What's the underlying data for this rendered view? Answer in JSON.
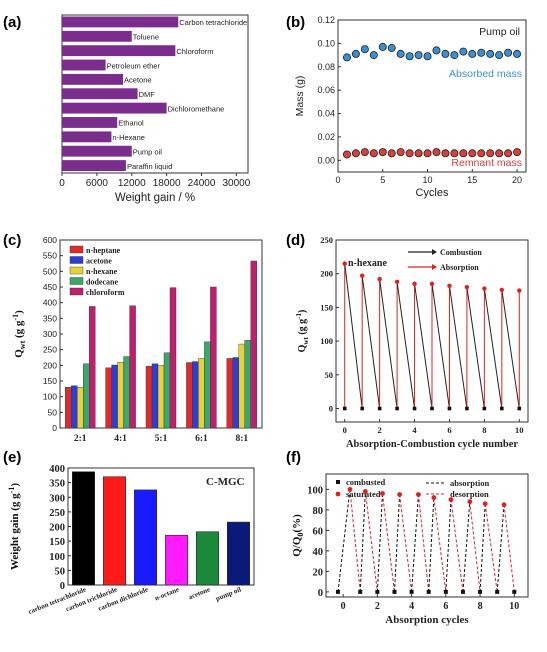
{
  "chart_data": [
    {
      "panel": "(a)",
      "type": "bar",
      "orientation": "horizontal",
      "categories": [
        "Carbon tetrachloride",
        "Toluene",
        "Chloroform",
        "Petroleum ether",
        "Acetone",
        "DMF",
        "Dichloromethane",
        "Ethanol",
        "n-Hexane",
        "Pump oil",
        "Paraffin liquid"
      ],
      "values": [
        20000,
        12000,
        19500,
        7500,
        10500,
        13000,
        18000,
        9500,
        8500,
        12000,
        11000
      ],
      "xlabel": "Weight gain / %",
      "xlim": [
        0,
        32000
      ],
      "xticks": [
        "0",
        "6000",
        "12000",
        "18000",
        "24000",
        "30000"
      ],
      "color": "#7b2d8e"
    },
    {
      "panel": "(b)",
      "type": "scatter",
      "title": "Pump oil",
      "xlabel": "Cycles",
      "ylabel": "Mass (g)",
      "xlim": [
        0,
        21
      ],
      "ylim": [
        -0.01,
        0.12
      ],
      "xticks": [
        "0",
        "5",
        "10",
        "15",
        "20"
      ],
      "yticks": [
        "0.00",
        "0.02",
        "0.04",
        "0.06",
        "0.08",
        "0.10",
        "0.12"
      ],
      "series": [
        {
          "name": "Absorbed mass",
          "color": "#3a8fd0",
          "x": [
            1,
            2,
            3,
            4,
            5,
            6,
            7,
            8,
            9,
            10,
            11,
            12,
            13,
            14,
            15,
            16,
            17,
            18,
            19,
            20
          ],
          "y": [
            0.088,
            0.091,
            0.095,
            0.09,
            0.097,
            0.096,
            0.091,
            0.089,
            0.09,
            0.089,
            0.094,
            0.091,
            0.09,
            0.093,
            0.091,
            0.092,
            0.091,
            0.09,
            0.092,
            0.091
          ]
        },
        {
          "name": "Remnant mass",
          "color": "#d9403a",
          "x": [
            1,
            2,
            3,
            4,
            5,
            6,
            7,
            8,
            9,
            10,
            11,
            12,
            13,
            14,
            15,
            16,
            17,
            18,
            19,
            20
          ],
          "y": [
            0.005,
            0.006,
            0.007,
            0.006,
            0.007,
            0.006,
            0.007,
            0.006,
            0.006,
            0.006,
            0.007,
            0.006,
            0.006,
            0.006,
            0.006,
            0.006,
            0.006,
            0.006,
            0.006,
            0.007
          ]
        }
      ]
    },
    {
      "panel": "(c)",
      "type": "bar",
      "categories": [
        "2:1",
        "4:1",
        "5:1",
        "6:1",
        "8:1"
      ],
      "ylabel": "Q",
      "ylabel_sub": "wt",
      "ylabel_unit": " (g g",
      "ylabel_sup": "-1",
      "ylabel_end": ")",
      "ylim": [
        0,
        600
      ],
      "yticks": [
        "0",
        "50",
        "100",
        "150",
        "200",
        "250",
        "300",
        "350",
        "400",
        "450",
        "500",
        "550",
        "600"
      ],
      "series": [
        {
          "name": "n-heptane",
          "color": "#e02b2b",
          "values": [
            130,
            192,
            197,
            209,
            222
          ]
        },
        {
          "name": "acetone",
          "color": "#2b3fd6",
          "values": [
            135,
            201,
            205,
            212,
            225
          ]
        },
        {
          "name": "n-hexane",
          "color": "#e8d23a",
          "values": [
            130,
            210,
            200,
            222,
            268
          ]
        },
        {
          "name": "dodecane",
          "color": "#3aa86a",
          "values": [
            205,
            228,
            240,
            275,
            280
          ]
        },
        {
          "name": "chloroform",
          "color": "#c01f6e",
          "values": [
            388,
            390,
            448,
            450,
            533
          ]
        }
      ]
    },
    {
      "panel": "(d)",
      "type": "line",
      "title": "n-hexane",
      "xlabel": "Absorption-Combustion cycle number",
      "ylabel": "Q",
      "ylabel_sub": "wt",
      "ylabel_unit": " (g g",
      "ylabel_sup": "-1",
      "ylabel_end": ")",
      "xlim": [
        -0.5,
        10.5
      ],
      "ylim": [
        -20,
        250
      ],
      "xticks": [
        "0",
        "2",
        "4",
        "6",
        "8",
        "10"
      ],
      "yticks": [
        "0",
        "50",
        "100",
        "150",
        "200",
        "250"
      ],
      "series": [
        {
          "name": "Combustion",
          "color": "#222222",
          "x": [
            0,
            0,
            1,
            1,
            2,
            2,
            3,
            3,
            4,
            4,
            5,
            5,
            6,
            6,
            7,
            7,
            8,
            8,
            9,
            9,
            10,
            10
          ],
          "y": [
            0,
            215,
            0,
            197,
            0,
            192,
            0,
            188,
            0,
            185,
            0,
            185,
            0,
            182,
            0,
            180,
            0,
            178,
            0,
            176,
            0,
            175
          ]
        },
        {
          "name": "Absorption",
          "color": "#e02020",
          "x": [
            0,
            1,
            2,
            3,
            4,
            5,
            6,
            7,
            8,
            9,
            10
          ],
          "y": [
            215,
            197,
            192,
            188,
            185,
            185,
            182,
            180,
            178,
            176,
            175
          ]
        }
      ]
    },
    {
      "panel": "(e)",
      "type": "bar",
      "title": "C-MGC",
      "categories": [
        "carbon tetrachloride",
        "carbon trichloride",
        "carbon dichloride",
        "n-octane",
        "acetone",
        "pump oil"
      ],
      "values": [
        387,
        370,
        325,
        170,
        182,
        215
      ],
      "colors": [
        "#000000",
        "#ff1a1a",
        "#1a1aff",
        "#ff1aff",
        "#1a8a3a",
        "#0a1a7a"
      ],
      "ylabel": "Weight gain (g g",
      "ylabel_sup": "-1",
      "ylabel_end": ")",
      "ylim": [
        0,
        400
      ],
      "yticks": [
        "0",
        "50",
        "100",
        "150",
        "200",
        "250",
        "300",
        "350",
        "400"
      ]
    },
    {
      "panel": "(f)",
      "type": "scatter",
      "xlabel": "Absorption cycles",
      "ylabel": "Q/Q",
      "ylabel_sub": "0",
      "ylabel_end": "(%)",
      "xlim": [
        -1,
        10.8
      ],
      "ylim": [
        -5,
        115
      ],
      "xticks": [
        "0",
        "2",
        "4",
        "6",
        "8",
        "10"
      ],
      "yticks": [
        "0",
        "20",
        "40",
        "60",
        "80",
        "100"
      ],
      "series": [
        {
          "name": "combusted",
          "color": "#111111",
          "x": [
            -0.3,
            1,
            2,
            3,
            4,
            5,
            6,
            7,
            8,
            9,
            10
          ],
          "y": [
            0,
            0,
            0,
            0,
            0,
            0,
            0,
            0,
            0,
            0,
            0
          ]
        },
        {
          "name": "saturated",
          "color": "#e02020",
          "x": [
            0.4,
            1.3,
            2.3,
            3.3,
            4.4,
            5.3,
            6.3,
            7.4,
            8.3,
            9.4
          ],
          "y": [
            100,
            98,
            96,
            95,
            95,
            92,
            90,
            88,
            86,
            85
          ]
        },
        {
          "name": "absorption",
          "color": "#111111",
          "style": "dash"
        },
        {
          "name": "desorption",
          "color": "#e02020",
          "style": "dash"
        }
      ]
    }
  ],
  "panels": {
    "a": "(a)",
    "b": "(b)",
    "c": "(c)",
    "d": "(d)",
    "e": "(e)",
    "f": "(f)"
  }
}
